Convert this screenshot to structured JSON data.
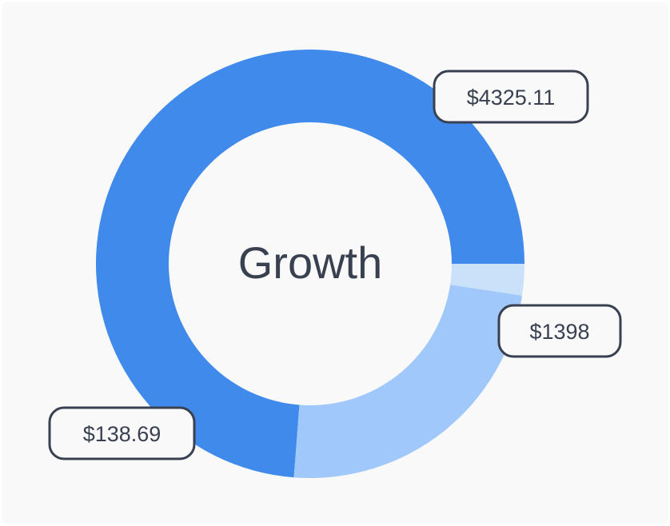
{
  "chart_data": {
    "type": "pie",
    "variant": "donut",
    "center_label": "Growth",
    "start_angle_deg": 0,
    "categories": [
      "",
      "",
      ""
    ],
    "values": [
      4325.11,
      1398,
      138.69
    ],
    "labels": [
      "$4325.11",
      "$1398",
      "$138.69"
    ],
    "colors": [
      "#3f8aea",
      "#a0c8fb",
      "#c9e1f9"
    ],
    "legend": "none"
  }
}
